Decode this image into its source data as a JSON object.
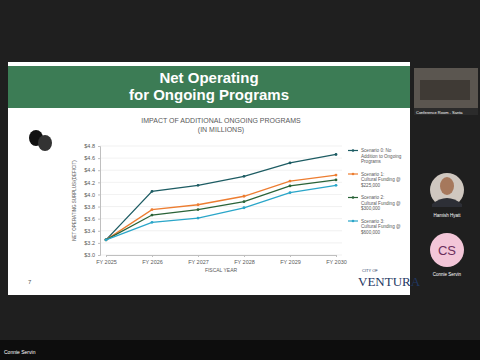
{
  "chart_data": {
    "type": "line",
    "title": "IMPACT OF ADDITIONAL ONGOING PROGRAMS (IN MILLIONS)",
    "x_label": "FISCAL YEAR",
    "y_label": "NET OPERATING SURPLUS/(DEFICIT)",
    "categories": [
      "FY 2025",
      "FY 2026",
      "FY 2027",
      "FY 2028",
      "FY 2029",
      "FY 2030"
    ],
    "series": [
      {
        "name": "Scenario 0: No Addition to Ongoing Programs",
        "color": "#1d5c63",
        "marker": "circle",
        "values": [
          3.25,
          4.05,
          4.15,
          4.3,
          4.52,
          4.66
        ]
      },
      {
        "name": "Scenario 1: Cultural Funding @ $225,000",
        "color": "#ed7d31",
        "marker": "circle",
        "values": [
          3.25,
          3.75,
          3.83,
          3.97,
          4.22,
          4.32
        ]
      },
      {
        "name": "Scenario 2: Cultural Funding @ $300,000",
        "color": "#2a6338",
        "marker": "circle",
        "values": [
          3.25,
          3.66,
          3.75,
          3.88,
          4.14,
          4.24
        ]
      },
      {
        "name": "Scenario 3: Cultural Funding @ $600,000",
        "color": "#2aa6c9",
        "marker": "circle",
        "values": [
          3.25,
          3.54,
          3.61,
          3.78,
          4.03,
          4.15
        ]
      }
    ],
    "ylim": [
      3.0,
      4.8
    ],
    "yticks": [
      {
        "value": 3.0,
        "label": "$3.0"
      },
      {
        "value": 3.2,
        "label": "$3.2"
      },
      {
        "value": 3.4,
        "label": "$3.4"
      },
      {
        "value": 3.6,
        "label": "$3.6"
      },
      {
        "value": 3.8,
        "label": "$3.8"
      },
      {
        "value": 4.0,
        "label": "$4.0"
      },
      {
        "value": 4.2,
        "label": "$4.2"
      },
      {
        "value": 4.4,
        "label": "$4.4"
      },
      {
        "value": 4.6,
        "label": "$4.6"
      },
      {
        "value": 4.8,
        "label": "$4.8"
      }
    ],
    "grid": true,
    "legend": "right"
  },
  "page": {
    "slide_title": [
      "Net Operating",
      "for Ongoing Programs"
    ],
    "slide_number": "7",
    "logo": [
      "CITY OF",
      "VENTURA"
    ],
    "room_label": "Conference Room - Santa",
    "participants": [
      {
        "name": "Hamish Hyatt"
      },
      {
        "initials": "CS",
        "name": "Connie Servin"
      }
    ],
    "speaker": "Connie Servin"
  }
}
